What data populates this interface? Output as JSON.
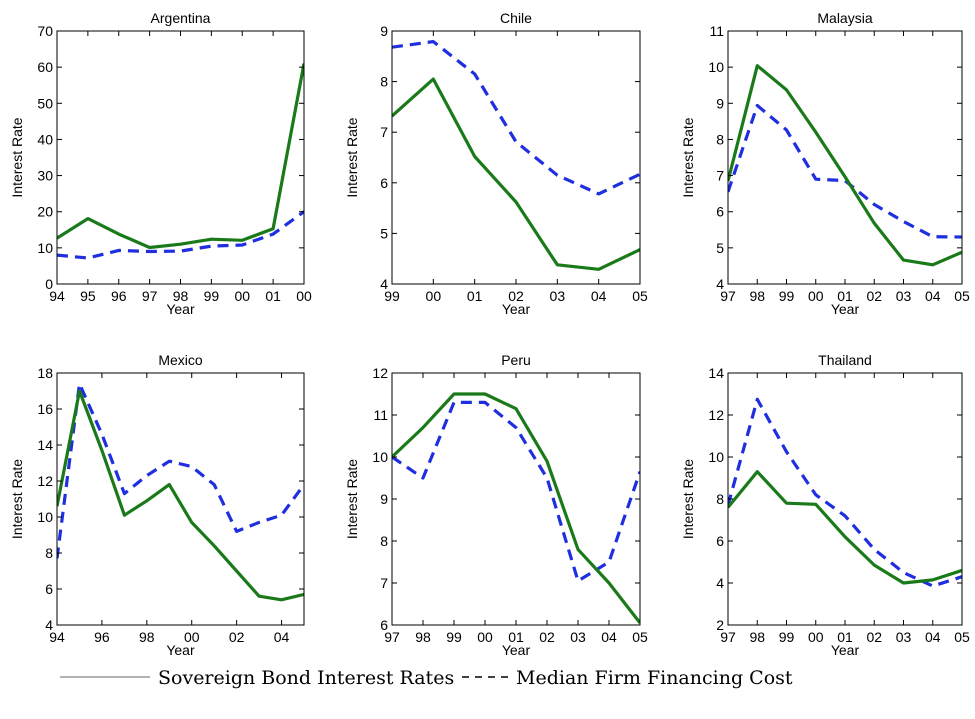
{
  "colors": {
    "sovereign": "#1a7a1a",
    "firm": "#1f2fe0",
    "axis": "#000000",
    "caption_line": "#9a9a9a"
  },
  "caption": {
    "sovereign_label": "Sovereign Bond Interest Rates",
    "firm_label": "Median Firm Financing Cost"
  },
  "chart_data": [
    {
      "type": "line",
      "title": "Argentina",
      "xlabel": "Year",
      "ylabel": "Interest Rate",
      "xlim": [
        0,
        8
      ],
      "ylim": [
        0,
        70
      ],
      "xticks": [
        "94",
        "95",
        "96",
        "97",
        "98",
        "99",
        "00",
        "01",
        "00"
      ],
      "yticks": [
        0,
        10,
        20,
        30,
        40,
        50,
        60,
        70
      ],
      "series": [
        {
          "key": "sovereign",
          "x": [
            0,
            1,
            2,
            3,
            4,
            5,
            6,
            7,
            8
          ],
          "values": [
            12.7,
            18.1,
            13.8,
            10.1,
            11.0,
            12.4,
            12.1,
            15.3,
            61.0
          ]
        },
        {
          "key": "firm",
          "x": [
            0,
            1,
            2,
            3,
            4,
            5,
            6,
            7,
            8
          ],
          "values": [
            8.0,
            7.2,
            9.3,
            9.0,
            9.1,
            10.5,
            10.8,
            13.8,
            20.0
          ]
        }
      ]
    },
    {
      "type": "line",
      "title": "Chile",
      "xlabel": "Year",
      "ylabel": "Interest Rate",
      "xlim": [
        0,
        6
      ],
      "ylim": [
        4,
        9
      ],
      "xticks": [
        "99",
        "00",
        "01",
        "02",
        "03",
        "04",
        "05"
      ],
      "yticks": [
        4,
        5,
        6,
        7,
        8,
        9
      ],
      "series": [
        {
          "key": "sovereign",
          "x": [
            0,
            1,
            2,
            3,
            4,
            5,
            6
          ],
          "values": [
            7.32,
            8.05,
            6.52,
            5.62,
            4.38,
            4.29,
            4.68
          ]
        },
        {
          "key": "firm",
          "x": [
            0,
            1,
            2,
            3,
            4,
            5,
            6
          ],
          "values": [
            8.68,
            8.79,
            8.15,
            6.81,
            6.15,
            5.78,
            6.17
          ]
        }
      ]
    },
    {
      "type": "line",
      "title": "Malaysia",
      "xlabel": "Year",
      "ylabel": "Interest Rate",
      "xlim": [
        0,
        8
      ],
      "ylim": [
        4,
        11
      ],
      "xticks": [
        "97",
        "98",
        "99",
        "00",
        "01",
        "02",
        "03",
        "04",
        "05"
      ],
      "yticks": [
        4,
        5,
        6,
        7,
        8,
        9,
        10,
        11
      ],
      "series": [
        {
          "key": "sovereign",
          "x": [
            0,
            1,
            2,
            3,
            4,
            5,
            6,
            7,
            8
          ],
          "values": [
            6.85,
            10.04,
            9.37,
            8.2,
            6.97,
            5.68,
            4.66,
            4.53,
            4.88
          ]
        },
        {
          "key": "firm",
          "x": [
            0,
            1,
            2,
            3,
            4,
            5,
            6,
            7,
            8
          ],
          "values": [
            6.55,
            8.94,
            8.26,
            6.9,
            6.86,
            6.2,
            5.73,
            5.31,
            5.3
          ]
        }
      ]
    },
    {
      "type": "line",
      "title": "Mexico",
      "xlabel": "Year",
      "ylabel": "Interest Rate",
      "xlim": [
        0,
        11
      ],
      "ylim": [
        4,
        18
      ],
      "xticks": [
        "94",
        "96",
        "98",
        "00",
        "02",
        "04"
      ],
      "xtick_pos": [
        0,
        2,
        4,
        6,
        8,
        10
      ],
      "yticks": [
        4,
        6,
        8,
        10,
        12,
        14,
        16,
        18
      ],
      "series": [
        {
          "key": "sovereign",
          "x": [
            0,
            1,
            2,
            3,
            4,
            5,
            6,
            7,
            8,
            9,
            10,
            11
          ],
          "values": [
            10.6,
            17.0,
            13.7,
            10.1,
            10.9,
            11.8,
            9.7,
            8.4,
            7.0,
            5.6,
            5.4,
            5.7
          ]
        },
        {
          "key": "firm",
          "x": [
            0,
            1,
            2,
            3,
            4,
            5,
            6,
            7,
            8,
            9,
            10,
            11
          ],
          "values": [
            7.7,
            17.4,
            14.6,
            11.3,
            12.3,
            13.1,
            12.8,
            11.8,
            9.2,
            9.7,
            10.1,
            11.8
          ]
        }
      ]
    },
    {
      "type": "line",
      "title": "Peru",
      "xlabel": "Year",
      "ylabel": "Interest Rate",
      "xlim": [
        0,
        8
      ],
      "ylim": [
        6,
        12
      ],
      "xticks": [
        "97",
        "98",
        "99",
        "00",
        "01",
        "02",
        "03",
        "04",
        "05"
      ],
      "yticks": [
        6,
        7,
        8,
        9,
        10,
        11,
        12
      ],
      "series": [
        {
          "key": "sovereign",
          "x": [
            0,
            1,
            2,
            3,
            4,
            5,
            6,
            7,
            8
          ],
          "values": [
            10.0,
            10.7,
            11.5,
            11.5,
            11.15,
            9.9,
            7.8,
            7.0,
            6.05
          ]
        },
        {
          "key": "firm",
          "x": [
            0,
            1,
            2,
            3,
            4,
            5,
            6,
            7,
            8
          ],
          "values": [
            10.0,
            9.5,
            11.3,
            11.3,
            10.7,
            9.5,
            7.05,
            7.5,
            9.65
          ]
        }
      ]
    },
    {
      "type": "line",
      "title": "Thailand",
      "xlabel": "Year",
      "ylabel": "Interest Rate",
      "xlim": [
        0,
        8
      ],
      "ylim": [
        2,
        14
      ],
      "xticks": [
        "97",
        "98",
        "99",
        "00",
        "01",
        "02",
        "03",
        "04",
        "05"
      ],
      "yticks": [
        2,
        4,
        6,
        8,
        10,
        12,
        14
      ],
      "series": [
        {
          "key": "sovereign",
          "x": [
            0,
            1,
            2,
            3,
            4,
            5,
            6,
            7,
            8
          ],
          "values": [
            7.6,
            9.3,
            7.8,
            7.75,
            6.2,
            4.85,
            4.0,
            4.15,
            4.6
          ]
        },
        {
          "key": "firm",
          "x": [
            0,
            1,
            2,
            3,
            4,
            5,
            6,
            7,
            8
          ],
          "values": [
            7.7,
            12.75,
            10.25,
            8.2,
            7.2,
            5.6,
            4.5,
            3.85,
            4.3
          ]
        }
      ]
    }
  ]
}
